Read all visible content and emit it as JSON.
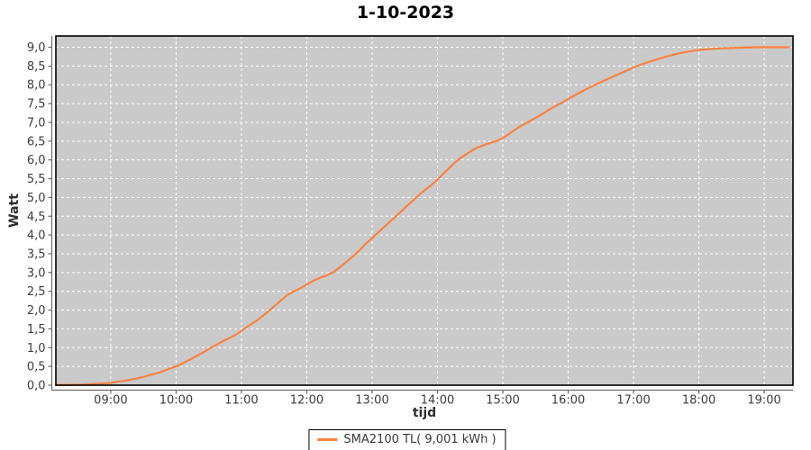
{
  "header": {
    "title": "1-10-2023"
  },
  "axes": {
    "y_label": "Watt",
    "x_label": "tijd"
  },
  "legend": {
    "series_label": "SMA2100 TL( 9,001 kWh )"
  },
  "colors": {
    "page_bg": "#ffffff",
    "plot_bg": "#cacaca",
    "grid": "#ffffff",
    "plot_border": "#000000",
    "axis_line": "#6b6b6b",
    "tick_text": "#3d3d3d",
    "series": "#fa8141"
  },
  "chart_data": {
    "type": "line",
    "title": "1-10-2023",
    "xlabel": "tijd",
    "ylabel": "Watt",
    "x_range": [
      8.16,
      19.44
    ],
    "y_range": [
      0,
      9.3
    ],
    "grid": "white-dashed on gray plot background",
    "legend_position": "bottom-center",
    "x_ticks": [
      {
        "v": 9,
        "label": "09:00"
      },
      {
        "v": 10,
        "label": "10:00"
      },
      {
        "v": 11,
        "label": "11:00"
      },
      {
        "v": 12,
        "label": "12:00"
      },
      {
        "v": 13,
        "label": "13:00"
      },
      {
        "v": 14,
        "label": "14:00"
      },
      {
        "v": 15,
        "label": "15:00"
      },
      {
        "v": 16,
        "label": "16:00"
      },
      {
        "v": 17,
        "label": "17:00"
      },
      {
        "v": 18,
        "label": "18:00"
      },
      {
        "v": 19,
        "label": "19:00"
      }
    ],
    "y_ticks": [
      {
        "v": 0,
        "label": "0,0"
      },
      {
        "v": 0.5,
        "label": "0,5"
      },
      {
        "v": 1,
        "label": "1,0"
      },
      {
        "v": 1.5,
        "label": "1,5"
      },
      {
        "v": 2,
        "label": "2,0"
      },
      {
        "v": 2.5,
        "label": "2,5"
      },
      {
        "v": 3,
        "label": "3,0"
      },
      {
        "v": 3.5,
        "label": "3,5"
      },
      {
        "v": 4,
        "label": "4,0"
      },
      {
        "v": 4.5,
        "label": "4,5"
      },
      {
        "v": 5,
        "label": "5,0"
      },
      {
        "v": 5.5,
        "label": "5,5"
      },
      {
        "v": 6,
        "label": "6,0"
      },
      {
        "v": 6.5,
        "label": "6,5"
      },
      {
        "v": 7,
        "label": "7,0"
      },
      {
        "v": 7.5,
        "label": "7,5"
      },
      {
        "v": 8,
        "label": "8,0"
      },
      {
        "v": 8.5,
        "label": "8,5"
      },
      {
        "v": 9,
        "label": "9,0"
      }
    ],
    "series": [
      {
        "name": "SMA2100 TL( 9,001 kWh )",
        "color": "#fa8141",
        "total_kwh": "9,001 kWh",
        "points": [
          [
            8.16,
            0.01
          ],
          [
            8.4,
            0.01
          ],
          [
            8.6,
            0.02
          ],
          [
            8.8,
            0.04
          ],
          [
            9.0,
            0.06
          ],
          [
            9.1,
            0.09
          ],
          [
            9.25,
            0.13
          ],
          [
            9.4,
            0.18
          ],
          [
            9.5,
            0.22
          ],
          [
            9.6,
            0.27
          ],
          [
            9.75,
            0.34
          ],
          [
            9.9,
            0.44
          ],
          [
            10.0,
            0.5
          ],
          [
            10.1,
            0.58
          ],
          [
            10.25,
            0.72
          ],
          [
            10.4,
            0.86
          ],
          [
            10.5,
            0.96
          ],
          [
            10.6,
            1.06
          ],
          [
            10.75,
            1.2
          ],
          [
            10.9,
            1.33
          ],
          [
            11.0,
            1.45
          ],
          [
            11.1,
            1.57
          ],
          [
            11.25,
            1.74
          ],
          [
            11.4,
            1.95
          ],
          [
            11.5,
            2.1
          ],
          [
            11.6,
            2.25
          ],
          [
            11.7,
            2.4
          ],
          [
            11.8,
            2.5
          ],
          [
            11.9,
            2.58
          ],
          [
            12.0,
            2.68
          ],
          [
            12.1,
            2.78
          ],
          [
            12.2,
            2.86
          ],
          [
            12.3,
            2.92
          ],
          [
            12.4,
            3.0
          ],
          [
            12.5,
            3.13
          ],
          [
            12.6,
            3.28
          ],
          [
            12.7,
            3.42
          ],
          [
            12.8,
            3.58
          ],
          [
            12.9,
            3.76
          ],
          [
            13.0,
            3.92
          ],
          [
            13.1,
            4.08
          ],
          [
            13.25,
            4.32
          ],
          [
            13.4,
            4.56
          ],
          [
            13.5,
            4.72
          ],
          [
            13.6,
            4.88
          ],
          [
            13.75,
            5.12
          ],
          [
            13.9,
            5.32
          ],
          [
            14.0,
            5.48
          ],
          [
            14.1,
            5.65
          ],
          [
            14.25,
            5.9
          ],
          [
            14.35,
            6.05
          ],
          [
            14.5,
            6.22
          ],
          [
            14.6,
            6.32
          ],
          [
            14.75,
            6.42
          ],
          [
            14.9,
            6.5
          ],
          [
            15.0,
            6.58
          ],
          [
            15.1,
            6.7
          ],
          [
            15.25,
            6.88
          ],
          [
            15.4,
            7.02
          ],
          [
            15.5,
            7.12
          ],
          [
            15.6,
            7.22
          ],
          [
            15.75,
            7.38
          ],
          [
            15.9,
            7.52
          ],
          [
            16.0,
            7.62
          ],
          [
            16.1,
            7.72
          ],
          [
            16.25,
            7.86
          ],
          [
            16.4,
            7.99
          ],
          [
            16.5,
            8.07
          ],
          [
            16.6,
            8.15
          ],
          [
            16.75,
            8.27
          ],
          [
            16.9,
            8.38
          ],
          [
            17.0,
            8.46
          ],
          [
            17.1,
            8.53
          ],
          [
            17.25,
            8.62
          ],
          [
            17.4,
            8.7
          ],
          [
            17.5,
            8.75
          ],
          [
            17.6,
            8.8
          ],
          [
            17.75,
            8.86
          ],
          [
            17.9,
            8.9
          ],
          [
            18.0,
            8.93
          ],
          [
            18.15,
            8.95
          ],
          [
            18.3,
            8.97
          ],
          [
            18.5,
            8.98
          ],
          [
            18.7,
            8.99
          ],
          [
            18.9,
            9.0
          ],
          [
            19.1,
            9.0
          ],
          [
            19.37,
            9.0
          ]
        ]
      }
    ]
  }
}
